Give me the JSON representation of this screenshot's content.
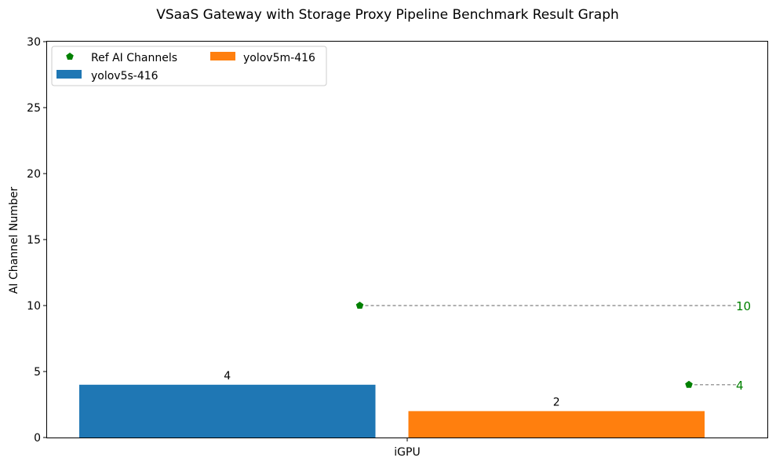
{
  "chart_data": {
    "type": "bar",
    "title": "VSaaS Gateway with Storage Proxy Pipeline Benchmark Result Graph",
    "xlabel": "",
    "ylabel": "AI Channel Number",
    "ylim": [
      0,
      30
    ],
    "yticks": [
      0,
      5,
      10,
      15,
      20,
      25,
      30
    ],
    "categories": [
      "iGPU"
    ],
    "grid": false,
    "legend_position": "top-left",
    "legend_ref_label": "Ref AI Channels",
    "series": [
      {
        "name": "yolov5s-416",
        "color": "#1f77b4",
        "values": [
          4
        ],
        "ref": 10
      },
      {
        "name": "yolov5m-416",
        "color": "#ff7f0e",
        "values": [
          2
        ],
        "ref": 4
      }
    ],
    "ref_color": "#008000",
    "ref_line_color": "#808080"
  }
}
